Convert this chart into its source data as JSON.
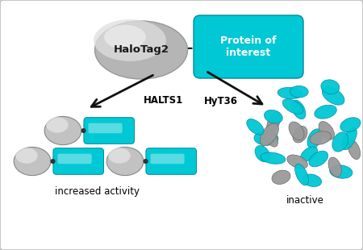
{
  "bg_color": "#ffffff",
  "border_color": "#bbbbbb",
  "cyan_color": "#00c8d4",
  "cyan_dark": "#008aa0",
  "gray_outer": "#b0b0b0",
  "gray_inner": "#e0e0e0",
  "gray_mid": "#c8c8c8",
  "text_color": "#111111",
  "halotag_label": "HaloTag2",
  "poi_label": "Protein of\ninterest",
  "halts1_label": "HALTS1",
  "hyt36_label": "HyT36",
  "increased_label": "increased activity",
  "inactive_label": "inactive",
  "arrow_color": "#111111"
}
